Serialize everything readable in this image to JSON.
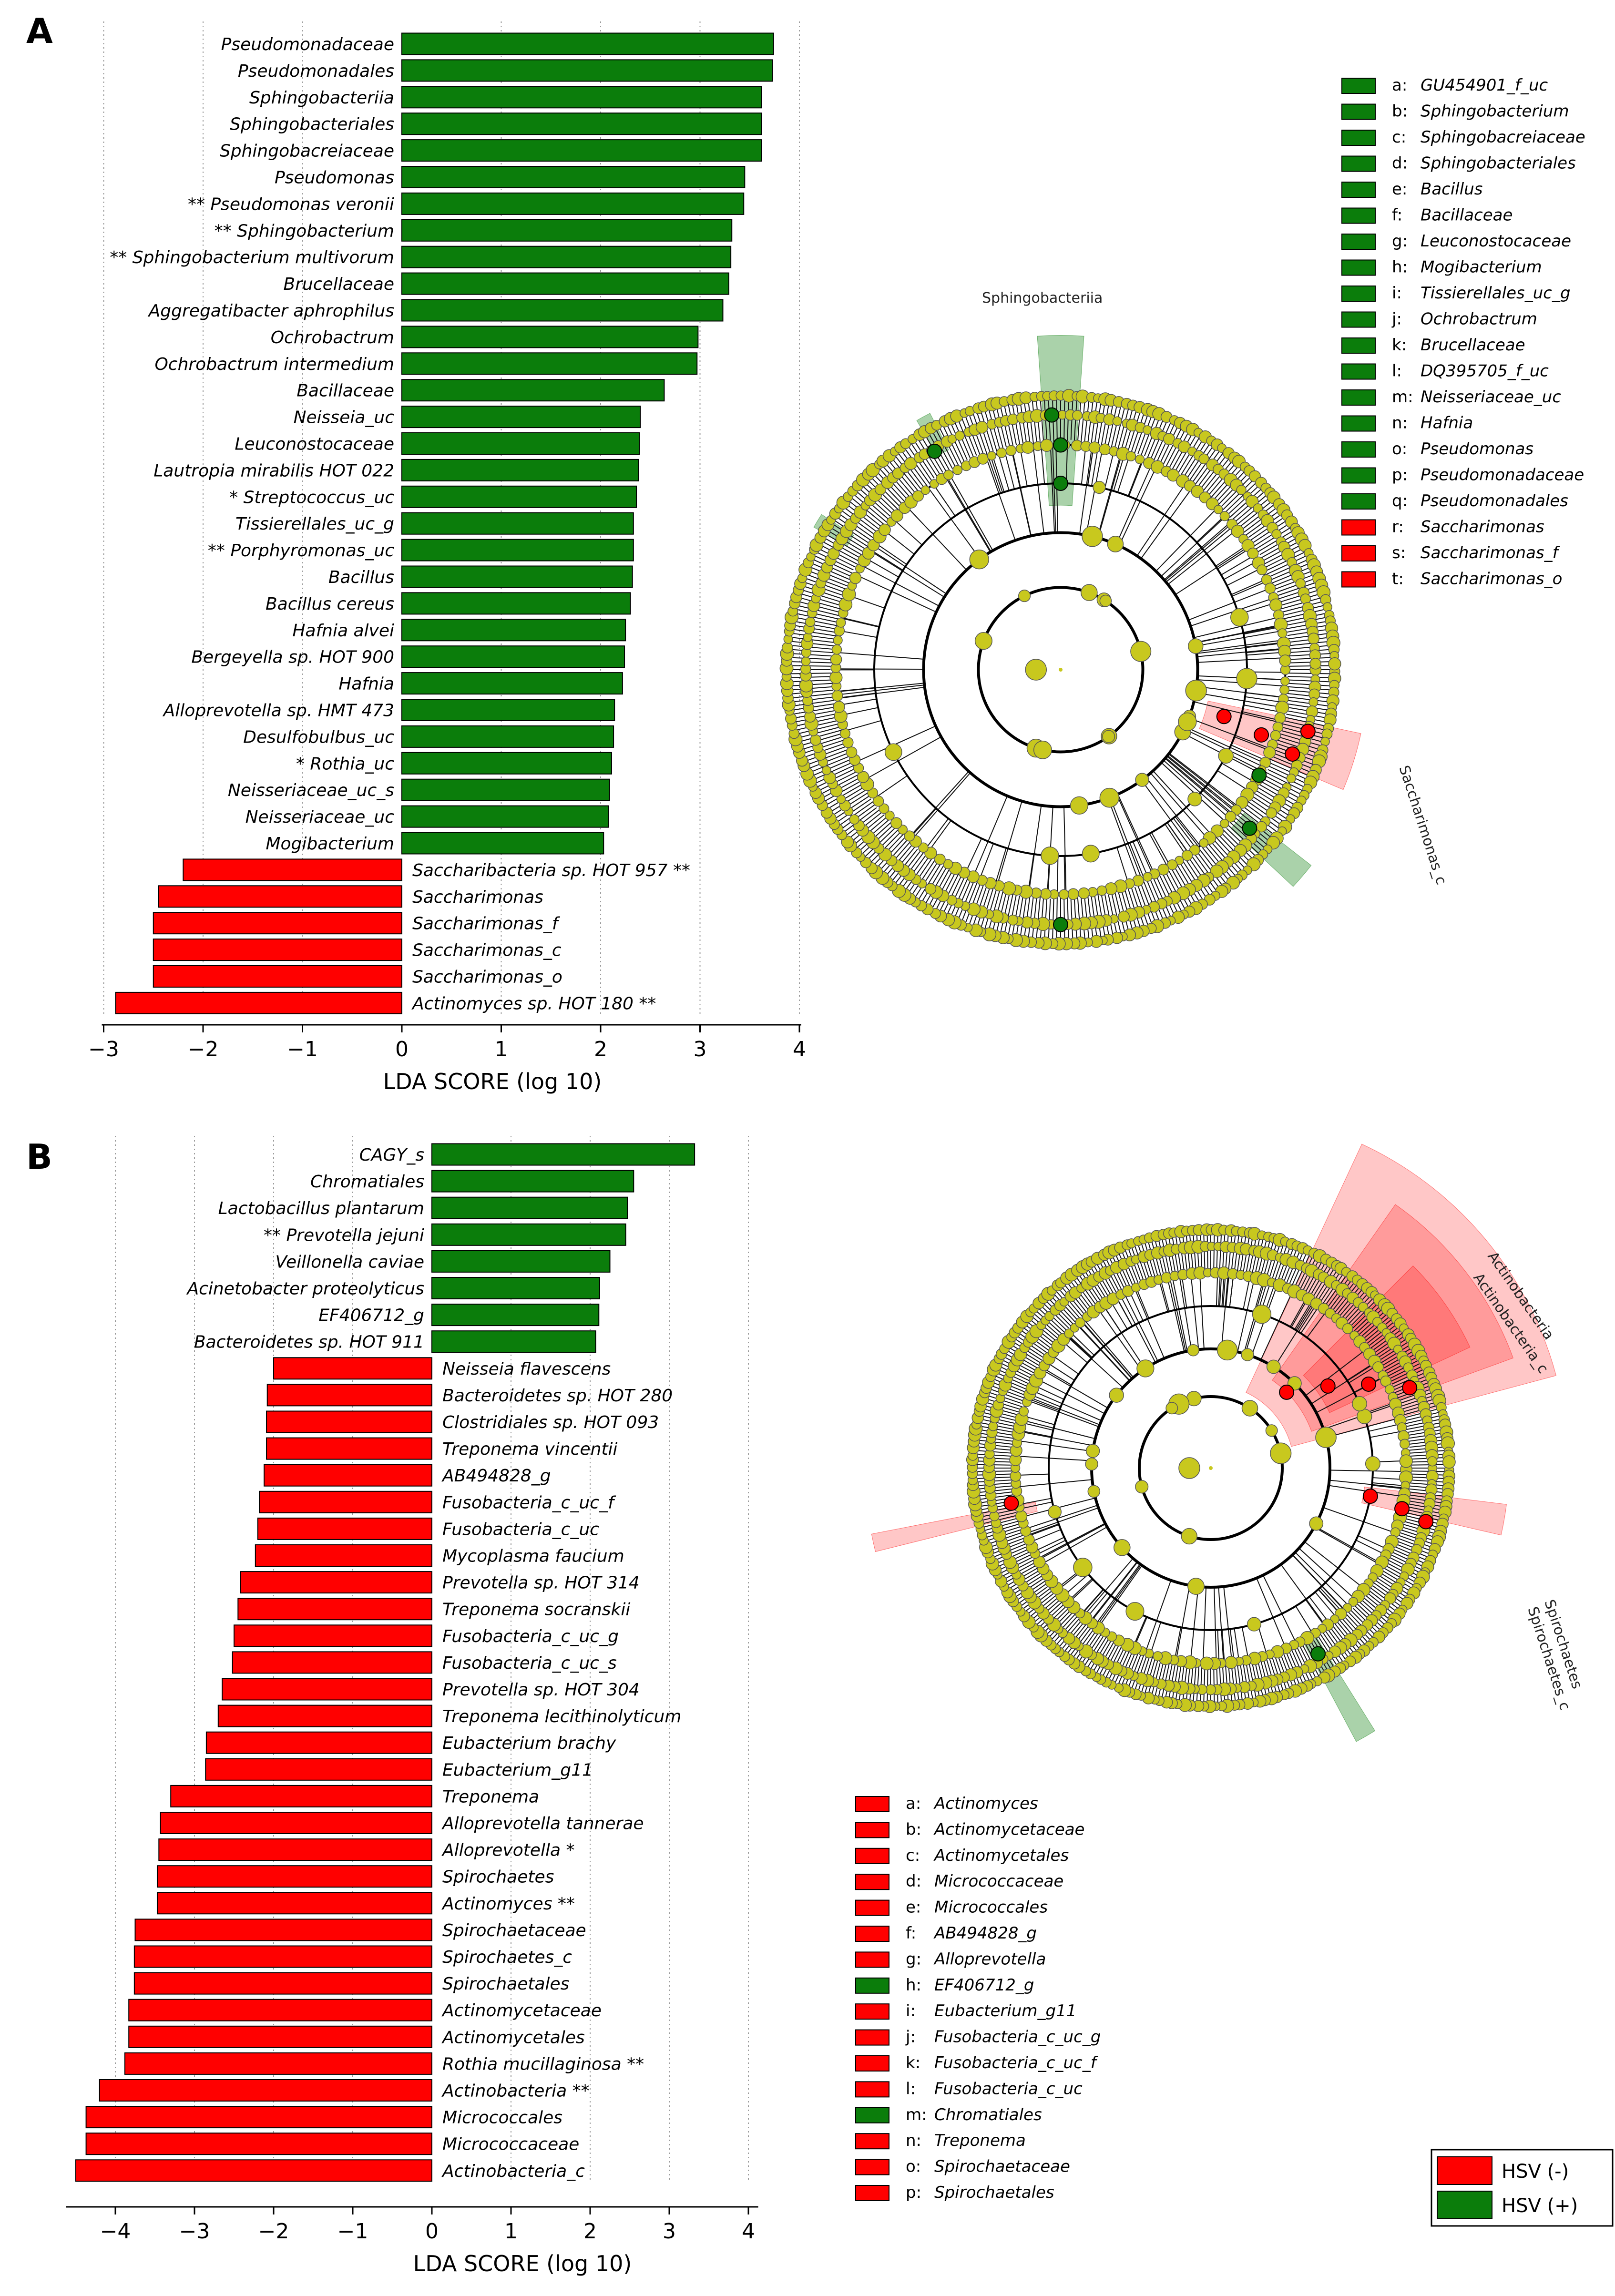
{
  "colors": {
    "green": "#0b7d0b",
    "red": "#ff0000",
    "node": "#c8c81e",
    "line": "#000000"
  },
  "figure": {
    "panels": [
      {
        "letter": "A",
        "axis_title": "LDA SCORE (log 10)",
        "tick_labels": [
          "−3",
          "−2",
          "−1",
          "0",
          "1",
          "2",
          "3",
          "4"
        ],
        "clade_labels": [
          "Sphingobacteriia",
          "Saccharimonas_c"
        ],
        "legend": [
          {
            "key": "a:",
            "name": "GU454901_f_uc",
            "group": "HSV (+)"
          },
          {
            "key": "b:",
            "name": "Sphingobacterium",
            "group": "HSV (+)"
          },
          {
            "key": "c:",
            "name": "Sphingobacreiaceae",
            "group": "HSV (+)"
          },
          {
            "key": "d:",
            "name": "Sphingobacteriales",
            "group": "HSV (+)"
          },
          {
            "key": "e:",
            "name": "Bacillus",
            "group": "HSV (+)"
          },
          {
            "key": "f:",
            "name": "Bacillaceae",
            "group": "HSV (+)"
          },
          {
            "key": "g:",
            "name": "Leuconostocaceae",
            "group": "HSV (+)"
          },
          {
            "key": "h:",
            "name": "Mogibacterium",
            "group": "HSV (+)"
          },
          {
            "key": "i:",
            "name": "Tissierellales_uc_g",
            "group": "HSV (+)"
          },
          {
            "key": "j:",
            "name": "Ochrobactrum",
            "group": "HSV (+)"
          },
          {
            "key": "k:",
            "name": "Brucellaceae",
            "group": "HSV (+)"
          },
          {
            "key": "l:",
            "name": "DQ395705_f_uc",
            "group": "HSV (+)"
          },
          {
            "key": "m:",
            "name": "Neisseriaceae_uc",
            "group": "HSV (+)"
          },
          {
            "key": "n:",
            "name": "Hafnia",
            "group": "HSV (+)"
          },
          {
            "key": "o:",
            "name": "Pseudomonas",
            "group": "HSV (+)"
          },
          {
            "key": "p:",
            "name": "Pseudomonadaceae",
            "group": "HSV (+)"
          },
          {
            "key": "q:",
            "name": "Pseudomonadales",
            "group": "HSV (+)"
          },
          {
            "key": "r:",
            "name": "Saccharimonas",
            "group": "HSV (-)"
          },
          {
            "key": "s:",
            "name": "Saccharimonas_f",
            "group": "HSV (-)"
          },
          {
            "key": "t:",
            "name": "Saccharimonas_o",
            "group": "HSV (-)"
          }
        ]
      },
      {
        "letter": "B",
        "axis_title": "LDA SCORE (log 10)",
        "tick_labels": [
          "−4",
          "−3",
          "−2",
          "−1",
          "0",
          "1",
          "2",
          "3",
          "4"
        ],
        "clade_labels": [
          "Actinobacteria",
          "Actinobacteria_c",
          "Spirochaetes",
          "Spirochaetes_c"
        ],
        "legend": [
          {
            "key": "a:",
            "name": "Actinomyces",
            "group": "HSV (-)"
          },
          {
            "key": "b:",
            "name": "Actinomycetaceae",
            "group": "HSV (-)"
          },
          {
            "key": "c:",
            "name": "Actinomycetales",
            "group": "HSV (-)"
          },
          {
            "key": "d:",
            "name": "Micrococcaceae",
            "group": "HSV (-)"
          },
          {
            "key": "e:",
            "name": "Micrococcales",
            "group": "HSV (-)"
          },
          {
            "key": "f:",
            "name": "AB494828_g",
            "group": "HSV (-)"
          },
          {
            "key": "g:",
            "name": "Alloprevotella",
            "group": "HSV (-)"
          },
          {
            "key": "h:",
            "name": "EF406712_g",
            "group": "HSV (+)"
          },
          {
            "key": "i:",
            "name": "Eubacterium_g11",
            "group": "HSV (-)"
          },
          {
            "key": "j:",
            "name": "Fusobacteria_c_uc_g",
            "group": "HSV (-)"
          },
          {
            "key": "k:",
            "name": "Fusobacteria_c_uc_f",
            "group": "HSV (-)"
          },
          {
            "key": "l:",
            "name": "Fusobacteria_c_uc",
            "group": "HSV (-)"
          },
          {
            "key": "m:",
            "name": "Chromatiales",
            "group": "HSV (+)"
          },
          {
            "key": "n:",
            "name": "Treponema",
            "group": "HSV (-)"
          },
          {
            "key": "o:",
            "name": "Spirochaetaceae",
            "group": "HSV (-)"
          },
          {
            "key": "p:",
            "name": "Spirochaetales",
            "group": "HSV (-)"
          }
        ]
      }
    ],
    "group_legend": [
      {
        "label": "HSV (-)",
        "color": "#ff0000"
      },
      {
        "label": "HSV (+)",
        "color": "#0b7d0b"
      }
    ]
  },
  "chart_data": [
    {
      "type": "bar",
      "orientation": "horizontal",
      "title": "A",
      "xlabel": "LDA SCORE (log 10)",
      "ylabel": "",
      "xlim": [
        -3,
        4
      ],
      "x_ticks": [
        -3,
        -2,
        -1,
        0,
        1,
        2,
        3,
        4
      ],
      "bars": [
        {
          "label": "Pseudomonadaceae",
          "value": 3.74,
          "group": "HSV (+)"
        },
        {
          "label": "Pseudomonadales",
          "value": 3.73,
          "group": "HSV (+)"
        },
        {
          "label": "Sphingobacteriia",
          "value": 3.62,
          "group": "HSV (+)"
        },
        {
          "label": "Sphingobacteriales",
          "value": 3.62,
          "group": "HSV (+)"
        },
        {
          "label": "Sphingobacreiaceae",
          "value": 3.62,
          "group": "HSV (+)"
        },
        {
          "label": "Pseudomonas",
          "value": 3.45,
          "group": "HSV (+)"
        },
        {
          "label": "** Pseudomonas veronii",
          "value": 3.44,
          "group": "HSV (+)"
        },
        {
          "label": "** Sphingobacterium",
          "value": 3.32,
          "group": "HSV (+)"
        },
        {
          "label": "** Sphingobacterium multivorum",
          "value": 3.31,
          "group": "HSV (+)"
        },
        {
          "label": "Brucellaceae",
          "value": 3.29,
          "group": "HSV (+)"
        },
        {
          "label": "Aggregatibacter aphrophilus",
          "value": 3.23,
          "group": "HSV (+)"
        },
        {
          "label": "Ochrobactrum",
          "value": 2.98,
          "group": "HSV (+)"
        },
        {
          "label": "Ochrobactrum intermedium",
          "value": 2.97,
          "group": "HSV (+)"
        },
        {
          "label": "Bacillaceae",
          "value": 2.64,
          "group": "HSV (+)"
        },
        {
          "label": "Neisseia_uc",
          "value": 2.4,
          "group": "HSV (+)"
        },
        {
          "label": "Leuconostocaceae",
          "value": 2.39,
          "group": "HSV (+)"
        },
        {
          "label": "Lautropia mirabilis HOT 022",
          "value": 2.38,
          "group": "HSV (+)"
        },
        {
          "label": "* Streptococcus_uc",
          "value": 2.36,
          "group": "HSV (+)"
        },
        {
          "label": "Tissierellales_uc_g",
          "value": 2.33,
          "group": "HSV (+)"
        },
        {
          "label": "** Porphyromonas_uc",
          "value": 2.33,
          "group": "HSV (+)"
        },
        {
          "label": "Bacillus",
          "value": 2.32,
          "group": "HSV (+)"
        },
        {
          "label": "Bacillus cereus",
          "value": 2.3,
          "group": "HSV (+)"
        },
        {
          "label": "Hafnia alvei",
          "value": 2.25,
          "group": "HSV (+)"
        },
        {
          "label": "Bergeyella sp. HOT 900",
          "value": 2.24,
          "group": "HSV (+)"
        },
        {
          "label": "Hafnia",
          "value": 2.22,
          "group": "HSV (+)"
        },
        {
          "label": "Alloprevotella sp. HMT 473",
          "value": 2.14,
          "group": "HSV (+)"
        },
        {
          "label": "Desulfobulbus_uc",
          "value": 2.13,
          "group": "HSV (+)"
        },
        {
          "label": "* Rothia_uc",
          "value": 2.11,
          "group": "HSV (+)"
        },
        {
          "label": "Neisseriaceae_uc_s",
          "value": 2.09,
          "group": "HSV (+)"
        },
        {
          "label": "Neisseriaceae_uc",
          "value": 2.08,
          "group": "HSV (+)"
        },
        {
          "label": "Mogibacterium",
          "value": 2.03,
          "group": "HSV (+)"
        },
        {
          "label": "Saccharibacteria sp. HOT 957 **",
          "value": -2.2,
          "group": "HSV (-)"
        },
        {
          "label": "Saccharimonas",
          "value": -2.45,
          "group": "HSV (-)"
        },
        {
          "label": "Saccharimonas_f",
          "value": -2.5,
          "group": "HSV (-)"
        },
        {
          "label": "Saccharimonas_c",
          "value": -2.5,
          "group": "HSV (-)"
        },
        {
          "label": "Saccharimonas_o",
          "value": -2.5,
          "group": "HSV (-)"
        },
        {
          "label": "Actinomyces sp. HOT 180 **",
          "value": -2.88,
          "group": "HSV (-)"
        }
      ]
    },
    {
      "type": "bar",
      "orientation": "horizontal",
      "title": "B",
      "xlabel": "LDA SCORE (log 10)",
      "ylabel": "",
      "xlim": [
        -4.6,
        4.1
      ],
      "x_ticks": [
        -4,
        -3,
        -2,
        -1,
        0,
        1,
        2,
        3,
        4
      ],
      "bars": [
        {
          "label": "CAGY_s",
          "value": 3.32,
          "group": "HSV (+)"
        },
        {
          "label": "Chromatiales",
          "value": 2.55,
          "group": "HSV (+)"
        },
        {
          "label": "Lactobacillus plantarum",
          "value": 2.47,
          "group": "HSV (+)"
        },
        {
          "label": "** Prevotella jejuni",
          "value": 2.45,
          "group": "HSV (+)"
        },
        {
          "label": "Veillonella caviae",
          "value": 2.25,
          "group": "HSV (+)"
        },
        {
          "label": "Acinetobacter proteolyticus",
          "value": 2.12,
          "group": "HSV (+)"
        },
        {
          "label": "EF406712_g",
          "value": 2.11,
          "group": "HSV (+)"
        },
        {
          "label": "Bacteroidetes sp. HOT 911",
          "value": 2.07,
          "group": "HSV (+)"
        },
        {
          "label": "Neisseia flavescens",
          "value": -2.0,
          "group": "HSV (-)"
        },
        {
          "label": "Bacteroidetes sp. HOT 280",
          "value": -2.08,
          "group": "HSV (-)"
        },
        {
          "label": "Clostridiales sp. HOT 093",
          "value": -2.09,
          "group": "HSV (-)"
        },
        {
          "label": "Treponema vincentii",
          "value": -2.09,
          "group": "HSV (-)"
        },
        {
          "label": "AB494828_g",
          "value": -2.12,
          "group": "HSV (-)"
        },
        {
          "label": "Fusobacteria_c_uc_f",
          "value": -2.18,
          "group": "HSV (-)"
        },
        {
          "label": "Fusobacteria_c_uc",
          "value": -2.2,
          "group": "HSV (-)"
        },
        {
          "label": "Mycoplasma faucium",
          "value": -2.23,
          "group": "HSV (-)"
        },
        {
          "label": "Prevotella sp. HOT 314",
          "value": -2.42,
          "group": "HSV (-)"
        },
        {
          "label": "Treponema socranskii",
          "value": -2.45,
          "group": "HSV (-)"
        },
        {
          "label": "Fusobacteria_c_uc_g",
          "value": -2.5,
          "group": "HSV (-)"
        },
        {
          "label": "Fusobacteria_c_uc_s",
          "value": -2.52,
          "group": "HSV (-)"
        },
        {
          "label": "Prevotella sp. HOT 304",
          "value": -2.65,
          "group": "HSV (-)"
        },
        {
          "label": "Treponema lecithinolyticum",
          "value": -2.7,
          "group": "HSV (-)"
        },
        {
          "label": "Eubacterium brachy",
          "value": -2.85,
          "group": "HSV (-)"
        },
        {
          "label": "Eubacterium_g11",
          "value": -2.86,
          "group": "HSV (-)"
        },
        {
          "label": "Treponema",
          "value": -3.3,
          "group": "HSV (-)"
        },
        {
          "label": "Alloprevotella tannerae",
          "value": -3.43,
          "group": "HSV (-)"
        },
        {
          "label": "Alloprevotella *",
          "value": -3.45,
          "group": "HSV (-)"
        },
        {
          "label": "Spirochaetes",
          "value": -3.47,
          "group": "HSV (-)"
        },
        {
          "label": "Actinomyces **",
          "value": -3.47,
          "group": "HSV (-)"
        },
        {
          "label": "Spirochaetaceae",
          "value": -3.75,
          "group": "HSV (-)"
        },
        {
          "label": "Spirochaetes_c",
          "value": -3.76,
          "group": "HSV (-)"
        },
        {
          "label": "Spirochaetales",
          "value": -3.76,
          "group": "HSV (-)"
        },
        {
          "label": "Actinomycetaceae",
          "value": -3.83,
          "group": "HSV (-)"
        },
        {
          "label": "Actinomycetales",
          "value": -3.83,
          "group": "HSV (-)"
        },
        {
          "label": "Rothia mucillaginosa **",
          "value": -3.88,
          "group": "HSV (-)"
        },
        {
          "label": "Actinobacteria **",
          "value": -4.2,
          "group": "HSV (-)"
        },
        {
          "label": "Micrococcales",
          "value": -4.37,
          "group": "HSV (-)"
        },
        {
          "label": "Micrococcaceae",
          "value": -4.37,
          "group": "HSV (-)"
        },
        {
          "label": "Actinobacteria_c",
          "value": -4.5,
          "group": "HSV (-)"
        }
      ]
    }
  ]
}
